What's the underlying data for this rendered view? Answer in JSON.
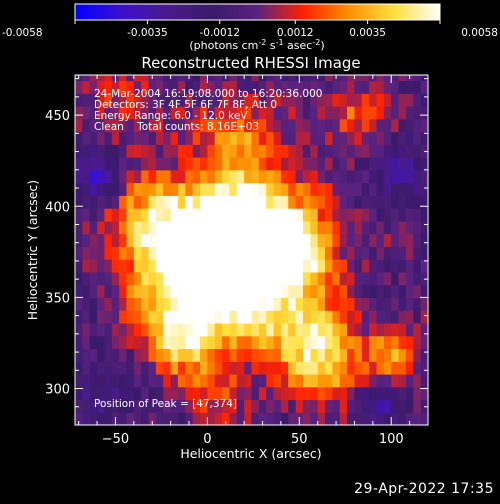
{
  "footer": {
    "date": "29-Apr-2022 17:35"
  },
  "colorbar": {
    "tick_labels": [
      "-0.0058",
      "-0.0035",
      "-0.0012",
      "0.0012",
      "0.0035",
      "0.0058"
    ],
    "tick_values": [
      -0.0058,
      -0.0035,
      -0.0012,
      0.0012,
      0.0035,
      0.0058
    ],
    "range": [
      -0.0058,
      0.0058
    ],
    "units_prefix": "(photons cm",
    "units_exp1": "-2",
    "units_mid": " s",
    "units_exp2": "-1",
    "units_suffix": " asec",
    "units_exp3": "-2",
    "units_close": ")",
    "gradient_colors": [
      "#0000ff",
      "#3a10d0",
      "#4a1a8c",
      "#3a1a6a",
      "#5a2280",
      "#ff2000",
      "#ff9000",
      "#ffe040",
      "#ffffff"
    ]
  },
  "chart_data": {
    "type": "heatmap",
    "title": "Reconstructed RHESSI Image",
    "xlabel": "Heliocentric X (arcsec)",
    "ylabel": "Heliocentric Y (arcsec)",
    "xlim": [
      -72,
      120
    ],
    "ylim": [
      280,
      472
    ],
    "x_ticks": [
      -50,
      0,
      50,
      100
    ],
    "y_ticks": [
      300,
      350,
      400,
      450
    ],
    "x_tick_labels": [
      "−50",
      "0",
      "50",
      "100"
    ],
    "y_tick_labels": [
      "300",
      "350",
      "400",
      "450"
    ],
    "annotations": [
      "24-Mar-2004 16:19:08.000 to 16:20:36.000",
      "Detectors: 3F 4F 5F 6F 7F 8F, Att 0",
      "Energy Range: 6.0 - 12.0 keV",
      "Clean    Total counts: 8.16E+03"
    ],
    "peak_label": "Position of Peak = [47,374]",
    "peak": [
      47,
      374
    ],
    "value_range": [
      -0.0058,
      0.0058
    ],
    "emission_blobs": [
      {
        "x": 47,
        "y": 374,
        "intensity": 1.0,
        "sigma": 16
      },
      {
        "x": 25,
        "y": 395,
        "intensity": 0.8,
        "sigma": 22
      },
      {
        "x": 0,
        "y": 380,
        "intensity": 0.85,
        "sigma": 24
      },
      {
        "x": -30,
        "y": 390,
        "intensity": 0.65,
        "sigma": 18
      },
      {
        "x": -15,
        "y": 350,
        "intensity": 0.7,
        "sigma": 18
      },
      {
        "x": 20,
        "y": 345,
        "intensity": 0.75,
        "sigma": 18
      },
      {
        "x": 55,
        "y": 330,
        "intensity": 0.7,
        "sigma": 16
      },
      {
        "x": 65,
        "y": 310,
        "intensity": 0.55,
        "sigma": 14
      },
      {
        "x": 100,
        "y": 320,
        "intensity": 0.6,
        "sigma": 10
      },
      {
        "x": -15,
        "y": 325,
        "intensity": 0.6,
        "sigma": 12
      },
      {
        "x": 15,
        "y": 440,
        "intensity": 0.5,
        "sigma": 14
      },
      {
        "x": 80,
        "y": 450,
        "intensity": 0.45,
        "sigma": 12
      },
      {
        "x": -45,
        "y": 455,
        "intensity": 0.35,
        "sigma": 14
      },
      {
        "x": 5,
        "y": 300,
        "intensity": 0.4,
        "sigma": 12
      }
    ],
    "negative_blobs": [
      {
        "x": -60,
        "y": 415,
        "intensity": -0.6,
        "sigma": 10
      },
      {
        "x": 92,
        "y": 292,
        "intensity": -0.5,
        "sigma": 8
      },
      {
        "x": 105,
        "y": 420,
        "intensity": -0.35,
        "sigma": 12
      },
      {
        "x": -60,
        "y": 300,
        "intensity": -0.3,
        "sigma": 12
      }
    ]
  }
}
